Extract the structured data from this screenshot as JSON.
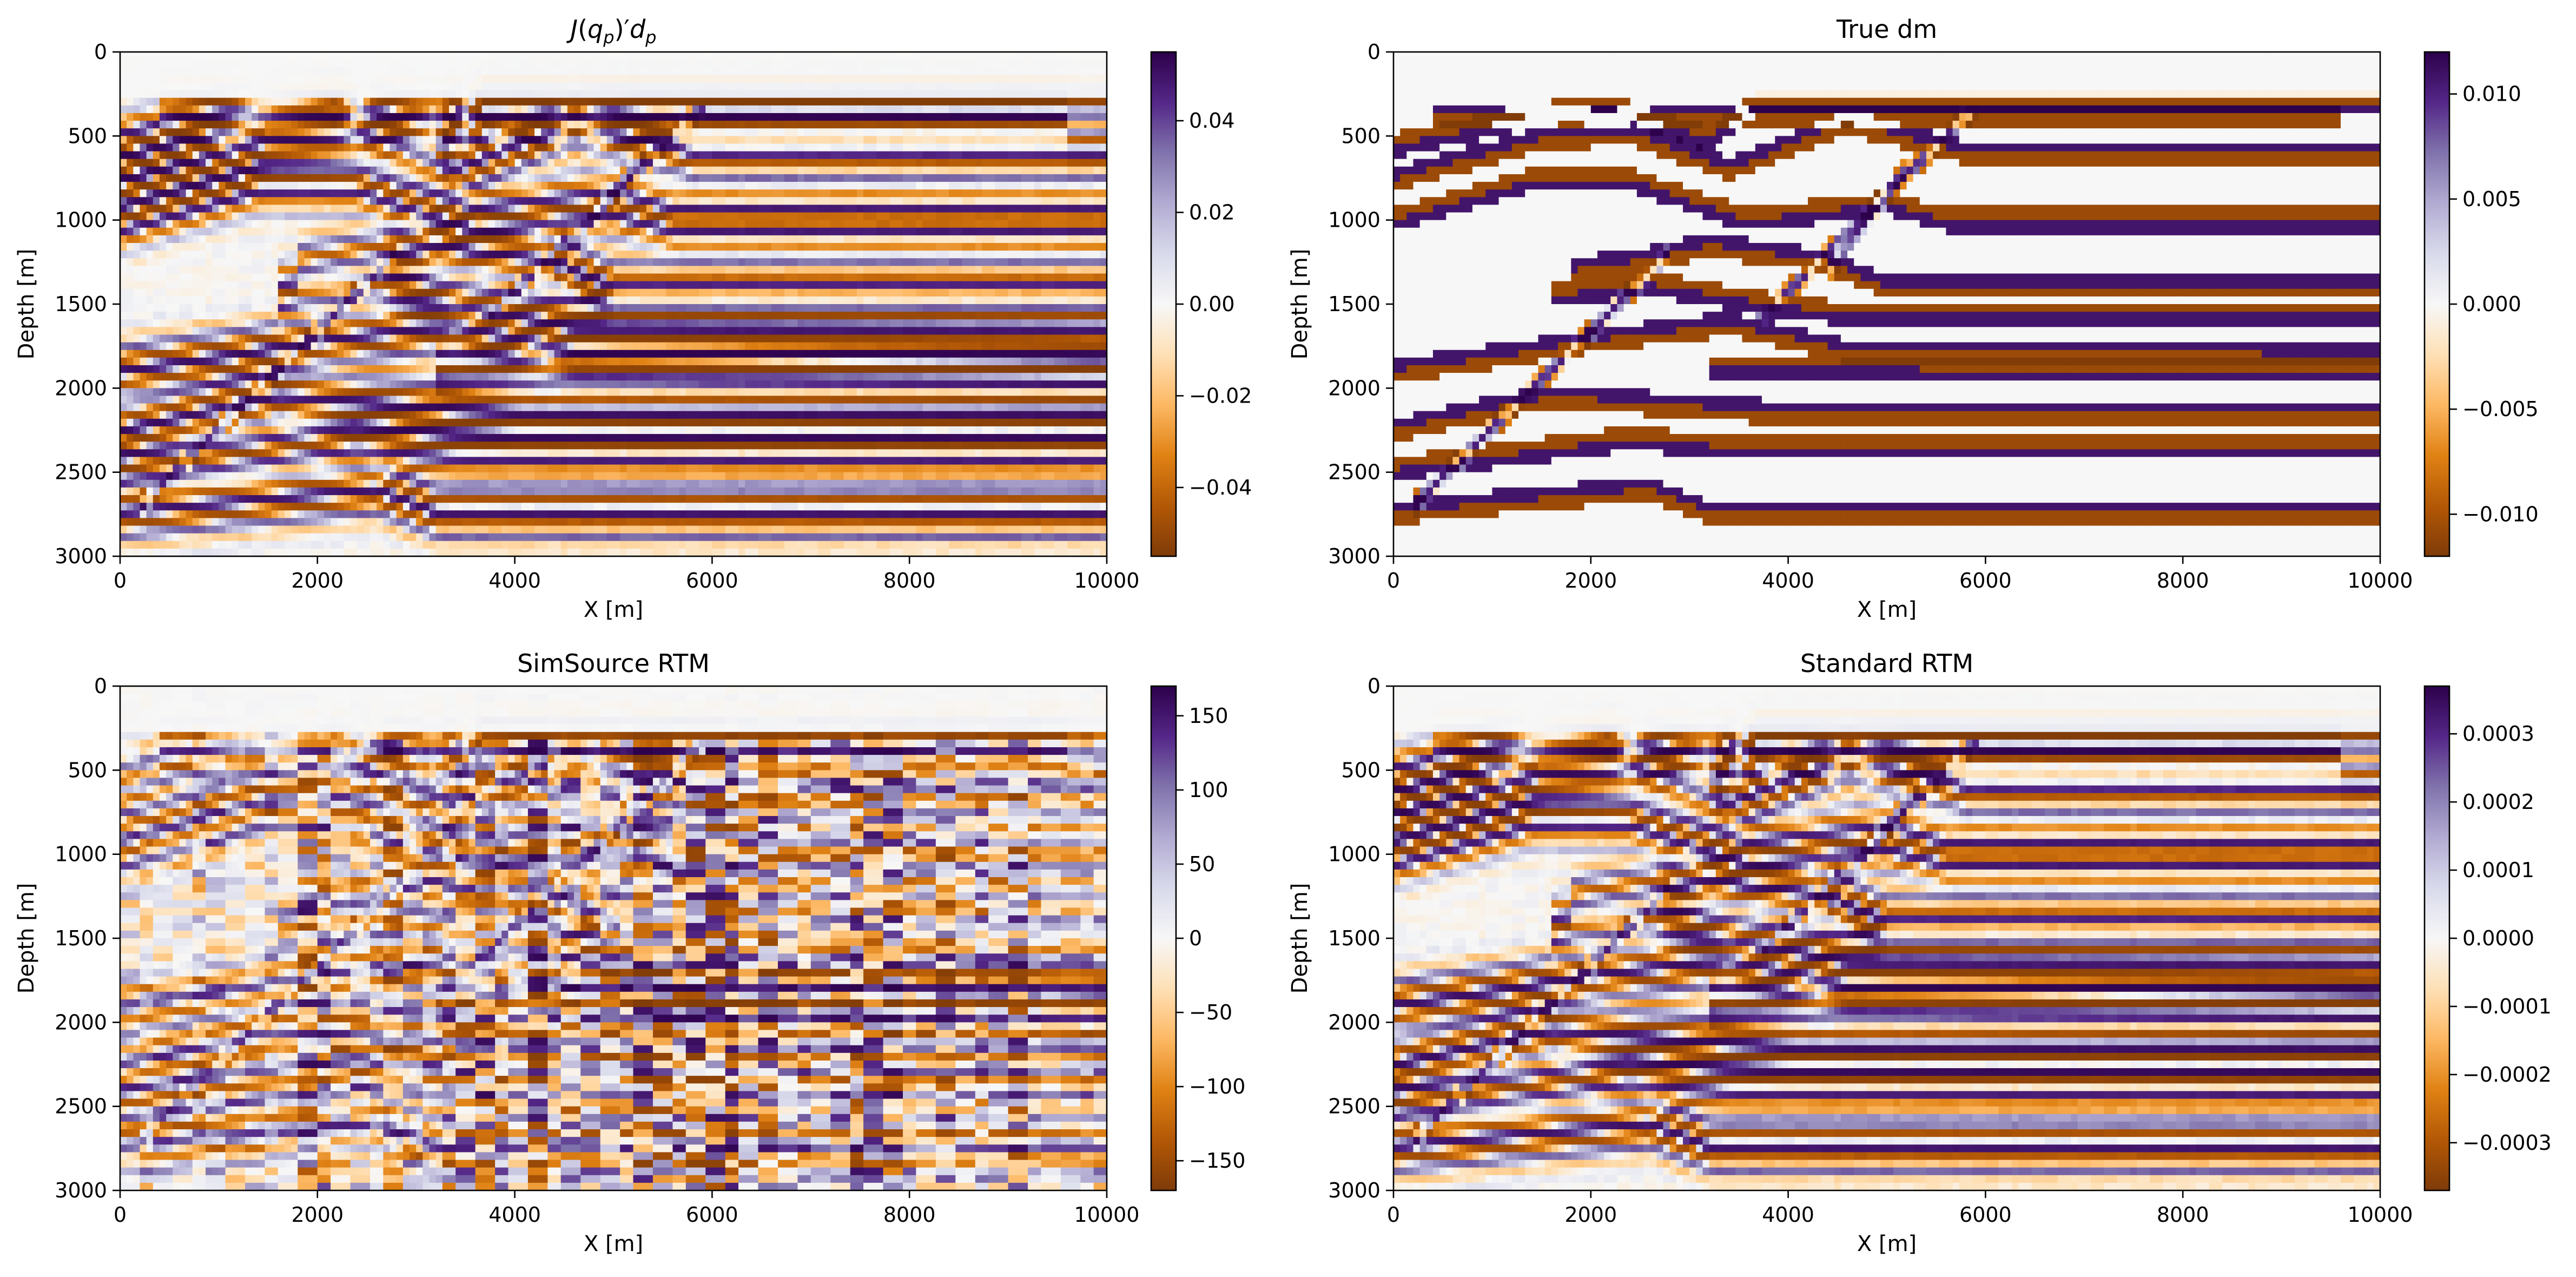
{
  "figure_title": "",
  "colormap": {
    "name": "PuOr",
    "stops": [
      "#7f3b08",
      "#b35806",
      "#e08214",
      "#fdb863",
      "#fee0b6",
      "#f7f7f7",
      "#d8daeb",
      "#b2abd2",
      "#8073ac",
      "#542788",
      "#2d004b"
    ]
  },
  "chart_data": [
    {
      "type": "heatmap",
      "title": "J(q_p)'d_p",
      "title_parts": {
        "J": "J",
        "open": "(",
        "q": "q",
        "sub1": "p",
        "close": ")",
        "prime": "′",
        "d": "d",
        "sub2": "p"
      },
      "xlabel": "X [m]",
      "ylabel": "Depth [m]",
      "xlim": [
        0,
        10000
      ],
      "ylim": [
        0,
        3000
      ],
      "y_inverted": true,
      "xticks": [
        "0",
        "2000",
        "4000",
        "6000",
        "8000",
        "10000"
      ],
      "yticks": [
        "0",
        "500",
        "1000",
        "1500",
        "2000",
        "2500",
        "3000"
      ],
      "colorbar": {
        "vmin": -0.055,
        "vmax": 0.055,
        "ticks": [
          0.04,
          0.02,
          0.0,
          -0.02,
          -0.04
        ],
        "tick_labels": [
          "0.04",
          "0.02",
          "0.00",
          "−0.02",
          "−0.04"
        ]
      }
    },
    {
      "type": "heatmap",
      "title": "True dm",
      "xlabel": "X [m]",
      "ylabel": "Depth [m]",
      "xlim": [
        0,
        10000
      ],
      "ylim": [
        0,
        3000
      ],
      "y_inverted": true,
      "xticks": [
        "0",
        "2000",
        "4000",
        "6000",
        "8000",
        "10000"
      ],
      "yticks": [
        "0",
        "500",
        "1000",
        "1500",
        "2000",
        "2500",
        "3000"
      ],
      "colorbar": {
        "vmin": -0.012,
        "vmax": 0.012,
        "ticks": [
          0.01,
          0.005,
          0.0,
          -0.005,
          -0.01
        ],
        "tick_labels": [
          "0.010",
          "0.005",
          "0.000",
          "−0.005",
          "−0.010"
        ]
      }
    },
    {
      "type": "heatmap",
      "title": "SimSource RTM",
      "xlabel": "X [m]",
      "ylabel": "Depth [m]",
      "xlim": [
        0,
        10000
      ],
      "ylim": [
        0,
        3000
      ],
      "y_inverted": true,
      "xticks": [
        "0",
        "2000",
        "4000",
        "6000",
        "8000",
        "10000"
      ],
      "yticks": [
        "0",
        "500",
        "1000",
        "1500",
        "2000",
        "2500",
        "3000"
      ],
      "colorbar": {
        "vmin": -170,
        "vmax": 170,
        "ticks": [
          150,
          100,
          50,
          0,
          -50,
          -100,
          -150
        ],
        "tick_labels": [
          "150",
          "100",
          "50",
          "0",
          "−50",
          "−100",
          "−150"
        ]
      }
    },
    {
      "type": "heatmap",
      "title": "Standard RTM",
      "xlabel": "X [m]",
      "ylabel": "Depth [m]",
      "xlim": [
        0,
        10000
      ],
      "ylim": [
        0,
        3000
      ],
      "y_inverted": true,
      "xticks": [
        "0",
        "2000",
        "4000",
        "6000",
        "8000",
        "10000"
      ],
      "yticks": [
        "0",
        "500",
        "1000",
        "1500",
        "2000",
        "2500",
        "3000"
      ],
      "colorbar": {
        "vmin": -0.00037,
        "vmax": 0.00037,
        "ticks": [
          0.0003,
          0.0002,
          0.0001,
          0.0,
          -0.0001,
          -0.0002,
          -0.0003
        ],
        "tick_labels": [
          "0.0003",
          "0.0002",
          "0.0001",
          "0.0000",
          "−0.0001",
          "−0.0002",
          "−0.0003"
        ]
      }
    }
  ]
}
